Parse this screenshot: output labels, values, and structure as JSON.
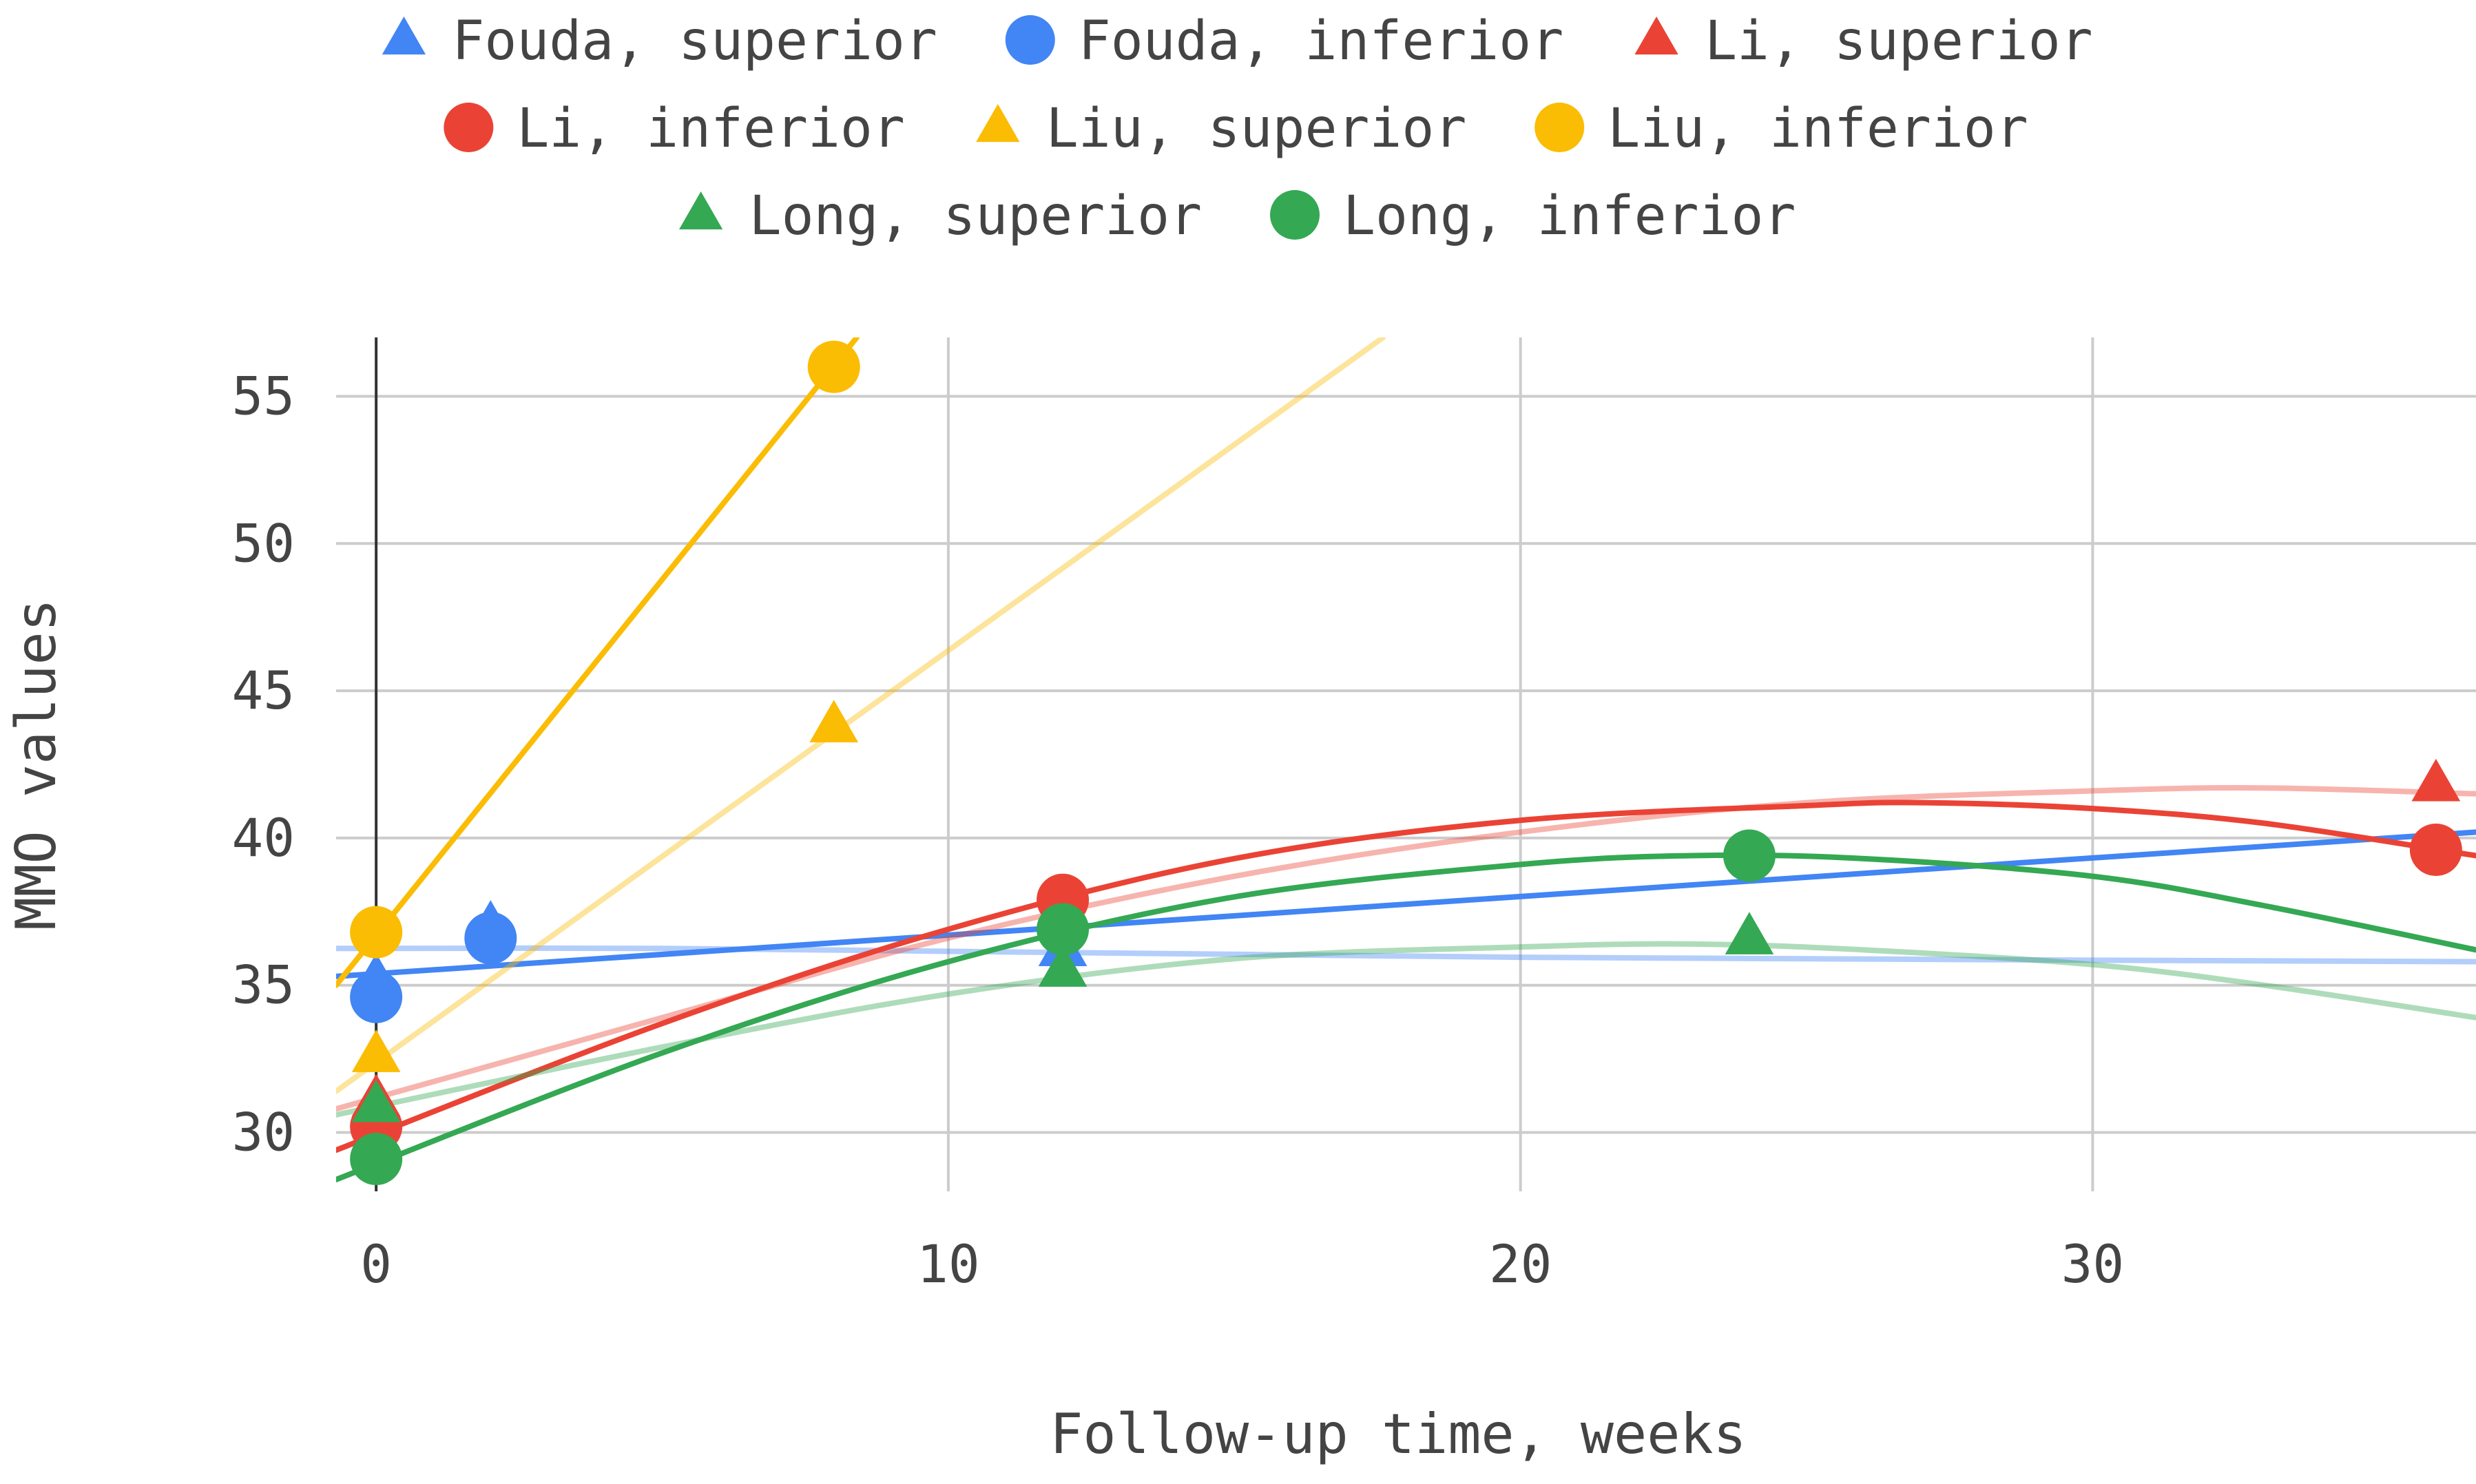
{
  "chart_data": {
    "type": "scatter",
    "xlabel": "Follow-up time, weeks",
    "ylabel": "MMO values",
    "xlim": [
      -0.7,
      36.7
    ],
    "ylim": [
      28.0,
      57.0
    ],
    "x_ticks": [
      0,
      10,
      20,
      30
    ],
    "y_ticks": [
      30,
      35,
      40,
      45,
      50,
      55
    ],
    "grid": true,
    "legend_position": "top",
    "series": [
      {
        "name": "Fouda, superior",
        "marker": "triangle",
        "color": "#4285F4",
        "points": [
          [
            0,
            35.2
          ],
          [
            2,
            37.0
          ],
          [
            12,
            36.2
          ]
        ],
        "trend": {
          "x": [
            -0.7,
            5,
            10,
            15,
            20,
            25,
            30,
            36.7
          ],
          "y": [
            36.25,
            36.25,
            36.15,
            36.05,
            35.95,
            35.9,
            35.85,
            35.8
          ]
        },
        "trend_opacity": 0.4
      },
      {
        "name": "Fouda, inferior",
        "marker": "circle",
        "color": "#4285F4",
        "points": [
          [
            0,
            34.6
          ],
          [
            2,
            36.6
          ]
        ],
        "trend": {
          "x": [
            -0.7,
            36.7
          ],
          "y": [
            35.3,
            40.2
          ]
        },
        "trend_opacity": 1.0
      },
      {
        "name": "Li, superior",
        "marker": "triangle",
        "color": "#EA4335",
        "points": [
          [
            0,
            31.1
          ],
          [
            12,
            37.6
          ],
          [
            36,
            41.8
          ]
        ],
        "trend": {
          "x": [
            -0.7,
            5,
            10,
            15,
            20,
            25,
            30,
            33,
            36.7
          ],
          "y": [
            30.8,
            33.9,
            36.6,
            38.7,
            40.2,
            41.2,
            41.6,
            41.7,
            41.5
          ]
        },
        "trend_opacity": 0.4
      },
      {
        "name": "Li, inferior",
        "marker": "circle",
        "color": "#EA4335",
        "points": [
          [
            0,
            30.2
          ],
          [
            12,
            37.9
          ],
          [
            36,
            39.6
          ]
        ],
        "trend": {
          "x": [
            -0.7,
            5,
            10,
            15,
            20,
            25,
            27,
            30,
            33,
            36.7
          ],
          "y": [
            29.4,
            33.7,
            36.9,
            39.3,
            40.6,
            41.1,
            41.2,
            41.0,
            40.5,
            39.4
          ]
        },
        "trend_opacity": 1.0
      },
      {
        "name": "Liu, superior",
        "marker": "triangle",
        "color": "#FBBC04",
        "points": [
          [
            0,
            32.6
          ],
          [
            8,
            43.8
          ]
        ],
        "trend": {
          "x": [
            -0.7,
            17.6
          ],
          "y": [
            31.4,
            57.0
          ]
        },
        "trend_opacity": 0.4
      },
      {
        "name": "Liu, inferior",
        "marker": "circle",
        "color": "#FBBC04",
        "points": [
          [
            0,
            36.8
          ],
          [
            8,
            56.0
          ]
        ],
        "trend": {
          "x": [
            -0.7,
            8.4
          ],
          "y": [
            35.0,
            57.0
          ]
        },
        "trend_opacity": 1.0
      },
      {
        "name": "Long, superior",
        "marker": "triangle",
        "color": "#34A853",
        "points": [
          [
            0,
            30.9
          ],
          [
            12,
            35.5
          ],
          [
            24,
            36.6
          ]
        ],
        "trend": {
          "x": [
            -0.7,
            5,
            10,
            15,
            20,
            23,
            26,
            30,
            33,
            36.7
          ],
          "y": [
            30.6,
            32.9,
            34.7,
            35.9,
            36.3,
            36.4,
            36.2,
            35.7,
            35.0,
            33.9
          ]
        },
        "trend_opacity": 0.4
      },
      {
        "name": "Long, inferior",
        "marker": "circle",
        "color": "#34A853",
        "points": [
          [
            0,
            29.1
          ],
          [
            12,
            36.9
          ],
          [
            24,
            39.4
          ]
        ],
        "trend": {
          "x": [
            -0.7,
            5,
            10,
            15,
            20,
            23,
            26,
            30,
            33,
            36.7
          ],
          "y": [
            28.4,
            32.7,
            35.8,
            38.0,
            39.1,
            39.4,
            39.3,
            38.7,
            37.7,
            36.2
          ]
        },
        "trend_opacity": 1.0
      }
    ]
  }
}
